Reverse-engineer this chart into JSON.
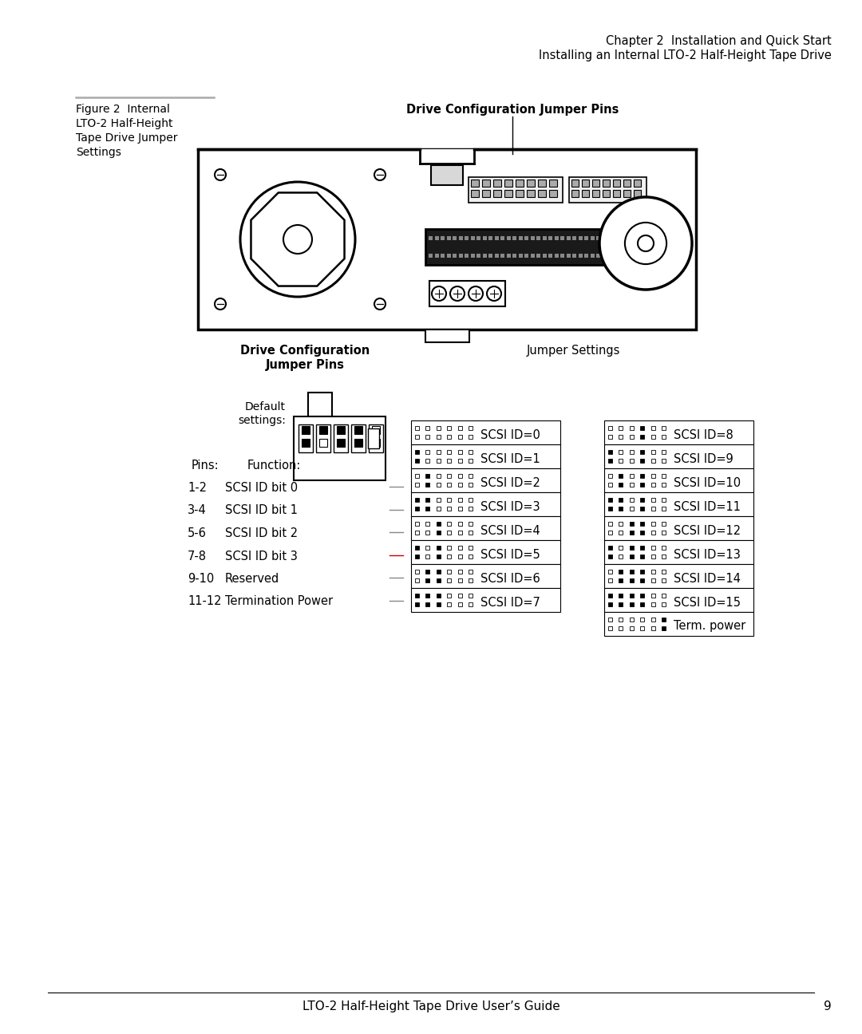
{
  "bg_color": "#ffffff",
  "header_line1": "Chapter 2  Installation and Quick Start",
  "header_line2": "Installing an Internal LTO-2 Half-Height Tape Drive",
  "figure_label_line1": "Figure 2  Internal",
  "figure_label_line2": "LTO-2 Half-Height",
  "figure_label_line3": "Tape Drive Jumper",
  "figure_label_line4": "Settings",
  "drive_config_label_top": "Drive Configuration Jumper Pins",
  "drive_config_label_bottom1": "Drive Configuration",
  "drive_config_label_bottom2": "Jumper Pins",
  "jumper_settings_label": "Jumper Settings",
  "default_settings_label1": "Default",
  "default_settings_label2": "settings:",
  "pins_label1": "Pins:",
  "pins_label2": "Function:",
  "pin_functions": [
    [
      "1-2",
      "SCSI ID bit 0"
    ],
    [
      "3-4",
      "SCSI ID bit 1"
    ],
    [
      "5-6",
      "SCSI ID bit 2"
    ],
    [
      "7-8",
      "SCSI ID bit 3"
    ],
    [
      "9-10",
      "Reserved"
    ],
    [
      "11-12",
      "Termination Power"
    ]
  ],
  "scsi_ids_left": [
    "SCSI ID=0",
    "SCSI ID=1",
    "SCSI ID=2",
    "SCSI ID=3",
    "SCSI ID=4",
    "SCSI ID=5",
    "SCSI ID=6",
    "SCSI ID=7"
  ],
  "scsi_ids_right": [
    "SCSI ID=8",
    "SCSI ID=9",
    "SCSI ID=10",
    "SCSI ID=11",
    "SCSI ID=12",
    "SCSI ID=13",
    "SCSI ID=14",
    "SCSI ID=15",
    "Term. power"
  ],
  "footer_text": "LTO-2 Half-Height Tape Drive User’s Guide",
  "footer_page": "9",
  "line_colors": [
    "#888888",
    "#888888",
    "#888888",
    "#cc0000",
    "#888888",
    "#888888"
  ]
}
